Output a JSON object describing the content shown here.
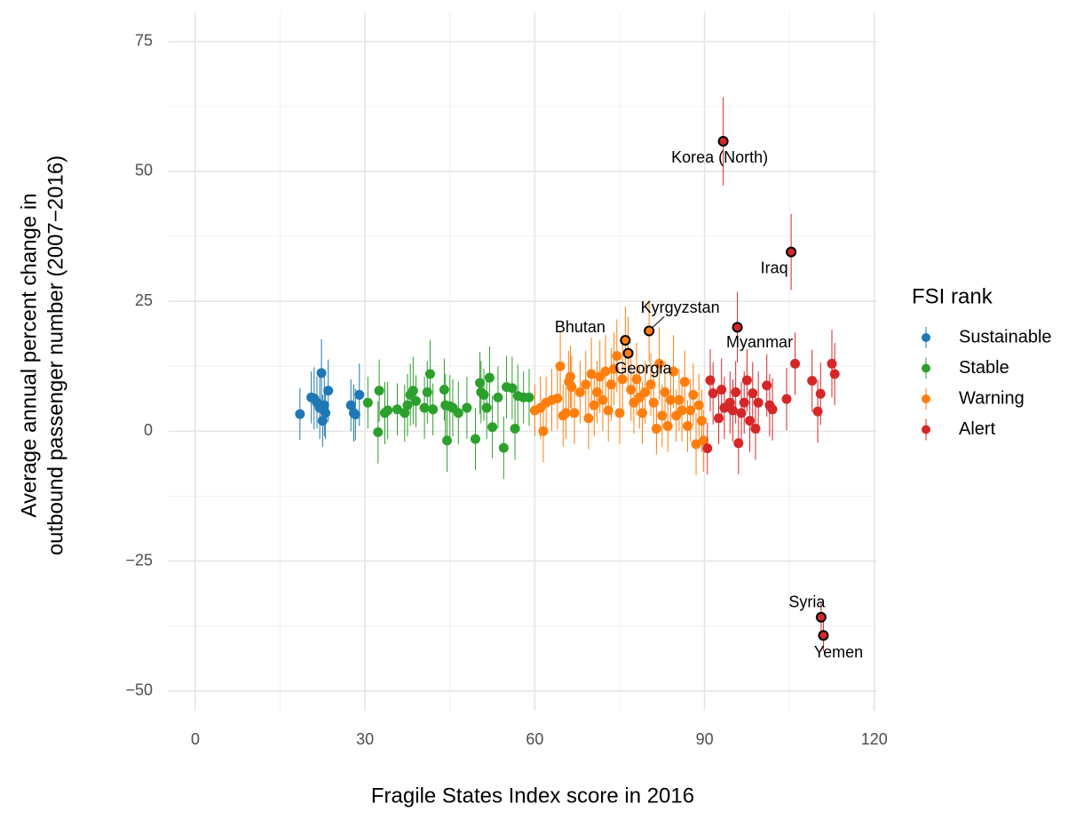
{
  "chart_data": {
    "type": "scatter",
    "xlabel": "Fragile States Index score in 2016",
    "ylabel": [
      "Average annual percent change in",
      "outbound passenger number (2007−2016)"
    ],
    "legend_title": "FSI rank",
    "legend_position": "right",
    "grid": true,
    "minor_grid": true,
    "xlim": [
      -4.7,
      120.5
    ],
    "ylim": [
      -53.8,
      80.6
    ],
    "xticks": [
      0,
      30,
      60,
      90,
      120
    ],
    "yticks": [
      {
        "value": -50,
        "label": "−50"
      },
      {
        "value": -25,
        "label": "−25"
      },
      0,
      25,
      50,
      75
    ],
    "series": [
      {
        "name": "Sustainable",
        "color": "#1f78b4",
        "x": [
          18.5,
          20.5,
          21,
          21.5,
          22,
          22.3,
          22.5,
          22.8,
          23,
          23.5,
          27.5,
          28,
          28.3,
          29
        ],
        "values": [
          3.3,
          6.5,
          6.3,
          5.5,
          4.5,
          11.2,
          2,
          5,
          3.5,
          7.8,
          5,
          3.5,
          3.2,
          7
        ],
        "errors": [
          5,
          5,
          6,
          5,
          6,
          6.5,
          5,
          6,
          5,
          6,
          5,
          5.5,
          5,
          6
        ]
      },
      {
        "name": "Stable",
        "color": "#2ca02c",
        "x": [
          30.5,
          32.3,
          32.5,
          33.5,
          34,
          35.7,
          37,
          37.5,
          38,
          38.5,
          39,
          40.5,
          41,
          41.5,
          42,
          44,
          44.2,
          44.5,
          45,
          45.5,
          46.5,
          48,
          49.5,
          50.3,
          50.5,
          51,
          51.5,
          52,
          52.5,
          53.5,
          54.5,
          55,
          56,
          56.5,
          57,
          58,
          59
        ],
        "values": [
          5.5,
          -0.2,
          7.8,
          3.5,
          4,
          4.2,
          3.5,
          5,
          7,
          7.8,
          5.8,
          4.5,
          7.5,
          11,
          4.2,
          8,
          5,
          -1.8,
          4.8,
          4.5,
          3.5,
          4.5,
          -1.5,
          9.3,
          7.5,
          7,
          4.5,
          10.3,
          0.8,
          6.5,
          -3.2,
          8.5,
          8.3,
          0.5,
          6.8,
          6.5,
          6.5
        ],
        "errors": [
          5,
          6,
          6,
          6,
          5.5,
          5,
          5.5,
          6,
          6,
          6.5,
          5,
          6,
          6,
          6.5,
          5,
          6,
          6,
          6,
          6,
          5.5,
          6,
          6,
          6,
          6,
          6,
          5,
          6,
          6,
          6,
          6,
          6,
          6,
          6,
          6,
          6,
          5,
          5.5
        ]
      },
      {
        "name": "Warning",
        "color": "#ff7f0e",
        "x": [
          60,
          61,
          61.5,
          62,
          63,
          64,
          64.5,
          65,
          65.5,
          66,
          66.3,
          66.5,
          67,
          68,
          69,
          69.5,
          70,
          70.5,
          71,
          71.5,
          72,
          72.5,
          73,
          73.5,
          74,
          74.5,
          75,
          75.5,
          76,
          76.5,
          77,
          77.5,
          78,
          78.5,
          79,
          79.5,
          80.2,
          80.5,
          81,
          81.5,
          82,
          82.5,
          83,
          83.5,
          84,
          84.5,
          85,
          85.5,
          86,
          86.5,
          87,
          87.5,
          88,
          88.5,
          89,
          89.5,
          89.8
        ],
        "values": [
          4,
          4.5,
          0,
          5.5,
          6,
          6.3,
          12.5,
          3,
          3.5,
          9.5,
          10.5,
          8.5,
          3.5,
          7.5,
          9,
          2.5,
          11,
          5,
          7.5,
          10.5,
          6,
          11.5,
          4,
          9,
          12,
          14.5,
          3.5,
          10,
          17.5,
          15,
          8,
          5.5,
          10,
          6.5,
          3.5,
          7.5,
          19.3,
          9,
          5.5,
          0.5,
          13,
          3,
          7.5,
          1,
          6,
          11.5,
          3,
          6,
          4,
          9.5,
          1,
          4,
          7,
          -2.5,
          5,
          2,
          -1.8
        ],
        "errors": [
          5,
          6,
          6,
          5,
          6,
          6,
          6.5,
          6,
          5,
          6,
          6,
          6,
          6,
          6,
          6.5,
          6,
          7,
          6,
          6,
          7,
          6,
          7,
          6,
          7,
          7,
          7,
          6,
          7,
          6.5,
          7,
          6,
          6,
          7,
          6,
          6,
          6,
          6,
          6,
          6,
          5,
          7,
          6,
          6,
          5,
          6,
          7,
          5,
          6,
          6,
          6,
          5,
          6,
          6,
          6,
          6,
          6,
          6
        ],
        "labels": [
          null,
          null,
          null,
          null,
          null,
          null,
          null,
          null,
          null,
          null,
          null,
          null,
          null,
          null,
          null,
          null,
          null,
          null,
          null,
          null,
          null,
          null,
          null,
          null,
          null,
          null,
          null,
          null,
          "Bhutan",
          "Georgia",
          null,
          null,
          null,
          null,
          null,
          null,
          "Kyrgyzstan",
          null,
          null,
          null,
          null,
          null,
          null,
          null,
          null,
          null,
          null,
          null,
          null,
          null,
          null,
          null,
          null,
          null,
          null,
          null,
          null
        ]
      },
      {
        "name": "Alert",
        "color": "#d62728",
        "x": [
          90.5,
          91,
          91.5,
          92.5,
          93,
          93.3,
          93.5,
          94.5,
          95,
          95.5,
          95.8,
          96,
          96.5,
          97,
          97.5,
          98,
          98.5,
          99,
          99.5,
          101,
          101.5,
          102,
          104.5,
          105.3,
          106,
          109,
          110,
          110.5,
          110.6,
          111,
          112.5,
          113
        ],
        "values": [
          -3.3,
          9.8,
          7.3,
          2.5,
          8,
          55.8,
          4.5,
          5.5,
          4,
          7.5,
          20,
          -2.3,
          3.5,
          5.5,
          9.8,
          2,
          7.3,
          0.5,
          5.5,
          8.8,
          5,
          4.2,
          6.2,
          34.5,
          13,
          9.7,
          3.8,
          7.2,
          -35.8,
          -39.3,
          13,
          11
        ],
        "errors": [
          5,
          6,
          6,
          5,
          6,
          8.5,
          6,
          6,
          6,
          6,
          6.8,
          6,
          6,
          6,
          6,
          6,
          6,
          6,
          6,
          6,
          6,
          6,
          6,
          7.3,
          6,
          6,
          6,
          6,
          3,
          3,
          6.5,
          6
        ],
        "labels": [
          null,
          null,
          null,
          null,
          null,
          "Korea (North)",
          null,
          null,
          null,
          null,
          "Myanmar",
          null,
          null,
          null,
          null,
          null,
          null,
          null,
          null,
          null,
          null,
          null,
          null,
          "Iraq",
          null,
          null,
          null,
          null,
          "Syria",
          "Yemen",
          null,
          null
        ]
      }
    ]
  }
}
